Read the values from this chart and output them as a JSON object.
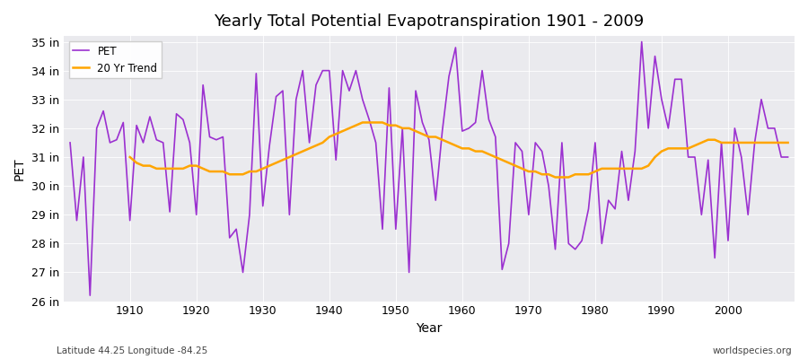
{
  "title": "Yearly Total Potential Evapotranspiration 1901 - 2009",
  "xlabel": "Year",
  "ylabel": "PET",
  "subtitle_left": "Latitude 44.25 Longitude -84.25",
  "subtitle_right": "worldspecies.org",
  "pet_color": "#9b30d0",
  "trend_color": "#FFA500",
  "bg_color": "#eaeaee",
  "ylim": [
    26,
    35.2
  ],
  "yticks": [
    26,
    27,
    28,
    29,
    30,
    31,
    32,
    33,
    34,
    35
  ],
  "ytick_labels": [
    "26 in",
    "27 in",
    "28 in",
    "29 in",
    "30 in",
    "31 in",
    "32 in",
    "33 in",
    "34 in",
    "35 in"
  ],
  "years": [
    1901,
    1902,
    1903,
    1904,
    1905,
    1906,
    1907,
    1908,
    1909,
    1910,
    1911,
    1912,
    1913,
    1914,
    1915,
    1916,
    1917,
    1918,
    1919,
    1920,
    1921,
    1922,
    1923,
    1924,
    1925,
    1926,
    1927,
    1928,
    1929,
    1930,
    1931,
    1932,
    1933,
    1934,
    1935,
    1936,
    1937,
    1938,
    1939,
    1940,
    1941,
    1942,
    1943,
    1944,
    1945,
    1946,
    1947,
    1948,
    1949,
    1950,
    1951,
    1952,
    1953,
    1954,
    1955,
    1956,
    1957,
    1958,
    1959,
    1960,
    1961,
    1962,
    1963,
    1964,
    1965,
    1966,
    1967,
    1968,
    1969,
    1970,
    1971,
    1972,
    1973,
    1974,
    1975,
    1976,
    1977,
    1978,
    1979,
    1980,
    1981,
    1982,
    1983,
    1984,
    1985,
    1986,
    1987,
    1988,
    1989,
    1990,
    1991,
    1992,
    1993,
    1994,
    1995,
    1996,
    1997,
    1998,
    1999,
    2000,
    2001,
    2002,
    2003,
    2004,
    2005,
    2006,
    2007,
    2008,
    2009
  ],
  "pet": [
    31.5,
    28.8,
    31.0,
    26.2,
    32.0,
    32.6,
    31.5,
    31.6,
    32.2,
    28.8,
    32.1,
    31.5,
    32.4,
    31.6,
    31.5,
    29.1,
    32.5,
    32.3,
    31.5,
    29.0,
    33.5,
    31.7,
    31.6,
    31.7,
    28.2,
    28.5,
    27.0,
    29.0,
    33.9,
    29.3,
    31.4,
    33.1,
    33.3,
    29.0,
    33.0,
    34.0,
    31.5,
    33.5,
    34.0,
    34.0,
    30.9,
    34.0,
    33.3,
    34.0,
    33.0,
    32.3,
    31.5,
    28.5,
    33.4,
    28.5,
    32.0,
    27.0,
    33.3,
    32.2,
    31.6,
    29.5,
    31.9,
    33.8,
    34.8,
    31.9,
    32.0,
    32.2,
    34.0,
    32.3,
    31.7,
    27.1,
    28.0,
    31.5,
    31.2,
    29.0,
    31.5,
    31.2,
    30.0,
    27.8,
    31.5,
    28.0,
    27.8,
    28.1,
    29.2,
    31.5,
    28.0,
    29.5,
    29.2,
    31.2,
    29.5,
    31.2,
    35.0,
    32.0,
    34.5,
    33.0,
    32.0,
    33.7,
    33.7,
    31.0,
    31.0,
    29.0,
    30.9,
    27.5,
    31.5,
    28.1,
    32.0,
    31.0,
    29.0,
    31.5,
    33.0,
    32.0,
    32.0,
    31.0,
    31.0
  ],
  "trend_years": [
    1910,
    1911,
    1912,
    1913,
    1914,
    1915,
    1916,
    1917,
    1918,
    1919,
    1920,
    1921,
    1922,
    1923,
    1924,
    1925,
    1926,
    1927,
    1928,
    1929,
    1930,
    1931,
    1932,
    1933,
    1934,
    1935,
    1936,
    1937,
    1938,
    1939,
    1940,
    1941,
    1942,
    1943,
    1944,
    1945,
    1946,
    1947,
    1948,
    1949,
    1950,
    1951,
    1952,
    1953,
    1954,
    1955,
    1956,
    1957,
    1958,
    1959,
    1960,
    1961,
    1962,
    1963,
    1964,
    1965,
    1966,
    1967,
    1968,
    1969,
    1970,
    1971,
    1972,
    1973,
    1974,
    1975,
    1976,
    1977,
    1978,
    1979,
    1980,
    1981,
    1982,
    1983,
    1984,
    1985,
    1986,
    1987,
    1988,
    1989,
    1990,
    1991,
    1992,
    1993,
    1994,
    1995,
    1996,
    1997,
    1998,
    1999,
    2000,
    2001,
    2002,
    2003,
    2004,
    2005,
    2006,
    2007,
    2008,
    2009
  ],
  "trend": [
    31.0,
    30.8,
    30.7,
    30.7,
    30.6,
    30.6,
    30.6,
    30.6,
    30.6,
    30.7,
    30.7,
    30.6,
    30.5,
    30.5,
    30.5,
    30.4,
    30.4,
    30.4,
    30.5,
    30.5,
    30.6,
    30.7,
    30.8,
    30.9,
    31.0,
    31.1,
    31.2,
    31.3,
    31.4,
    31.5,
    31.7,
    31.8,
    31.9,
    32.0,
    32.1,
    32.2,
    32.2,
    32.2,
    32.2,
    32.1,
    32.1,
    32.0,
    32.0,
    31.9,
    31.8,
    31.7,
    31.7,
    31.6,
    31.5,
    31.4,
    31.3,
    31.3,
    31.2,
    31.2,
    31.1,
    31.0,
    30.9,
    30.8,
    30.7,
    30.6,
    30.5,
    30.5,
    30.4,
    30.4,
    30.3,
    30.3,
    30.3,
    30.4,
    30.4,
    30.4,
    30.5,
    30.6,
    30.6,
    30.6,
    30.6,
    30.6,
    30.6,
    30.6,
    30.7,
    31.0,
    31.2,
    31.3,
    31.3,
    31.3,
    31.3,
    31.4,
    31.5,
    31.6,
    31.6,
    31.5,
    31.5,
    31.5,
    31.5,
    31.5,
    31.5,
    31.5,
    31.5,
    31.5,
    31.5,
    31.5
  ]
}
